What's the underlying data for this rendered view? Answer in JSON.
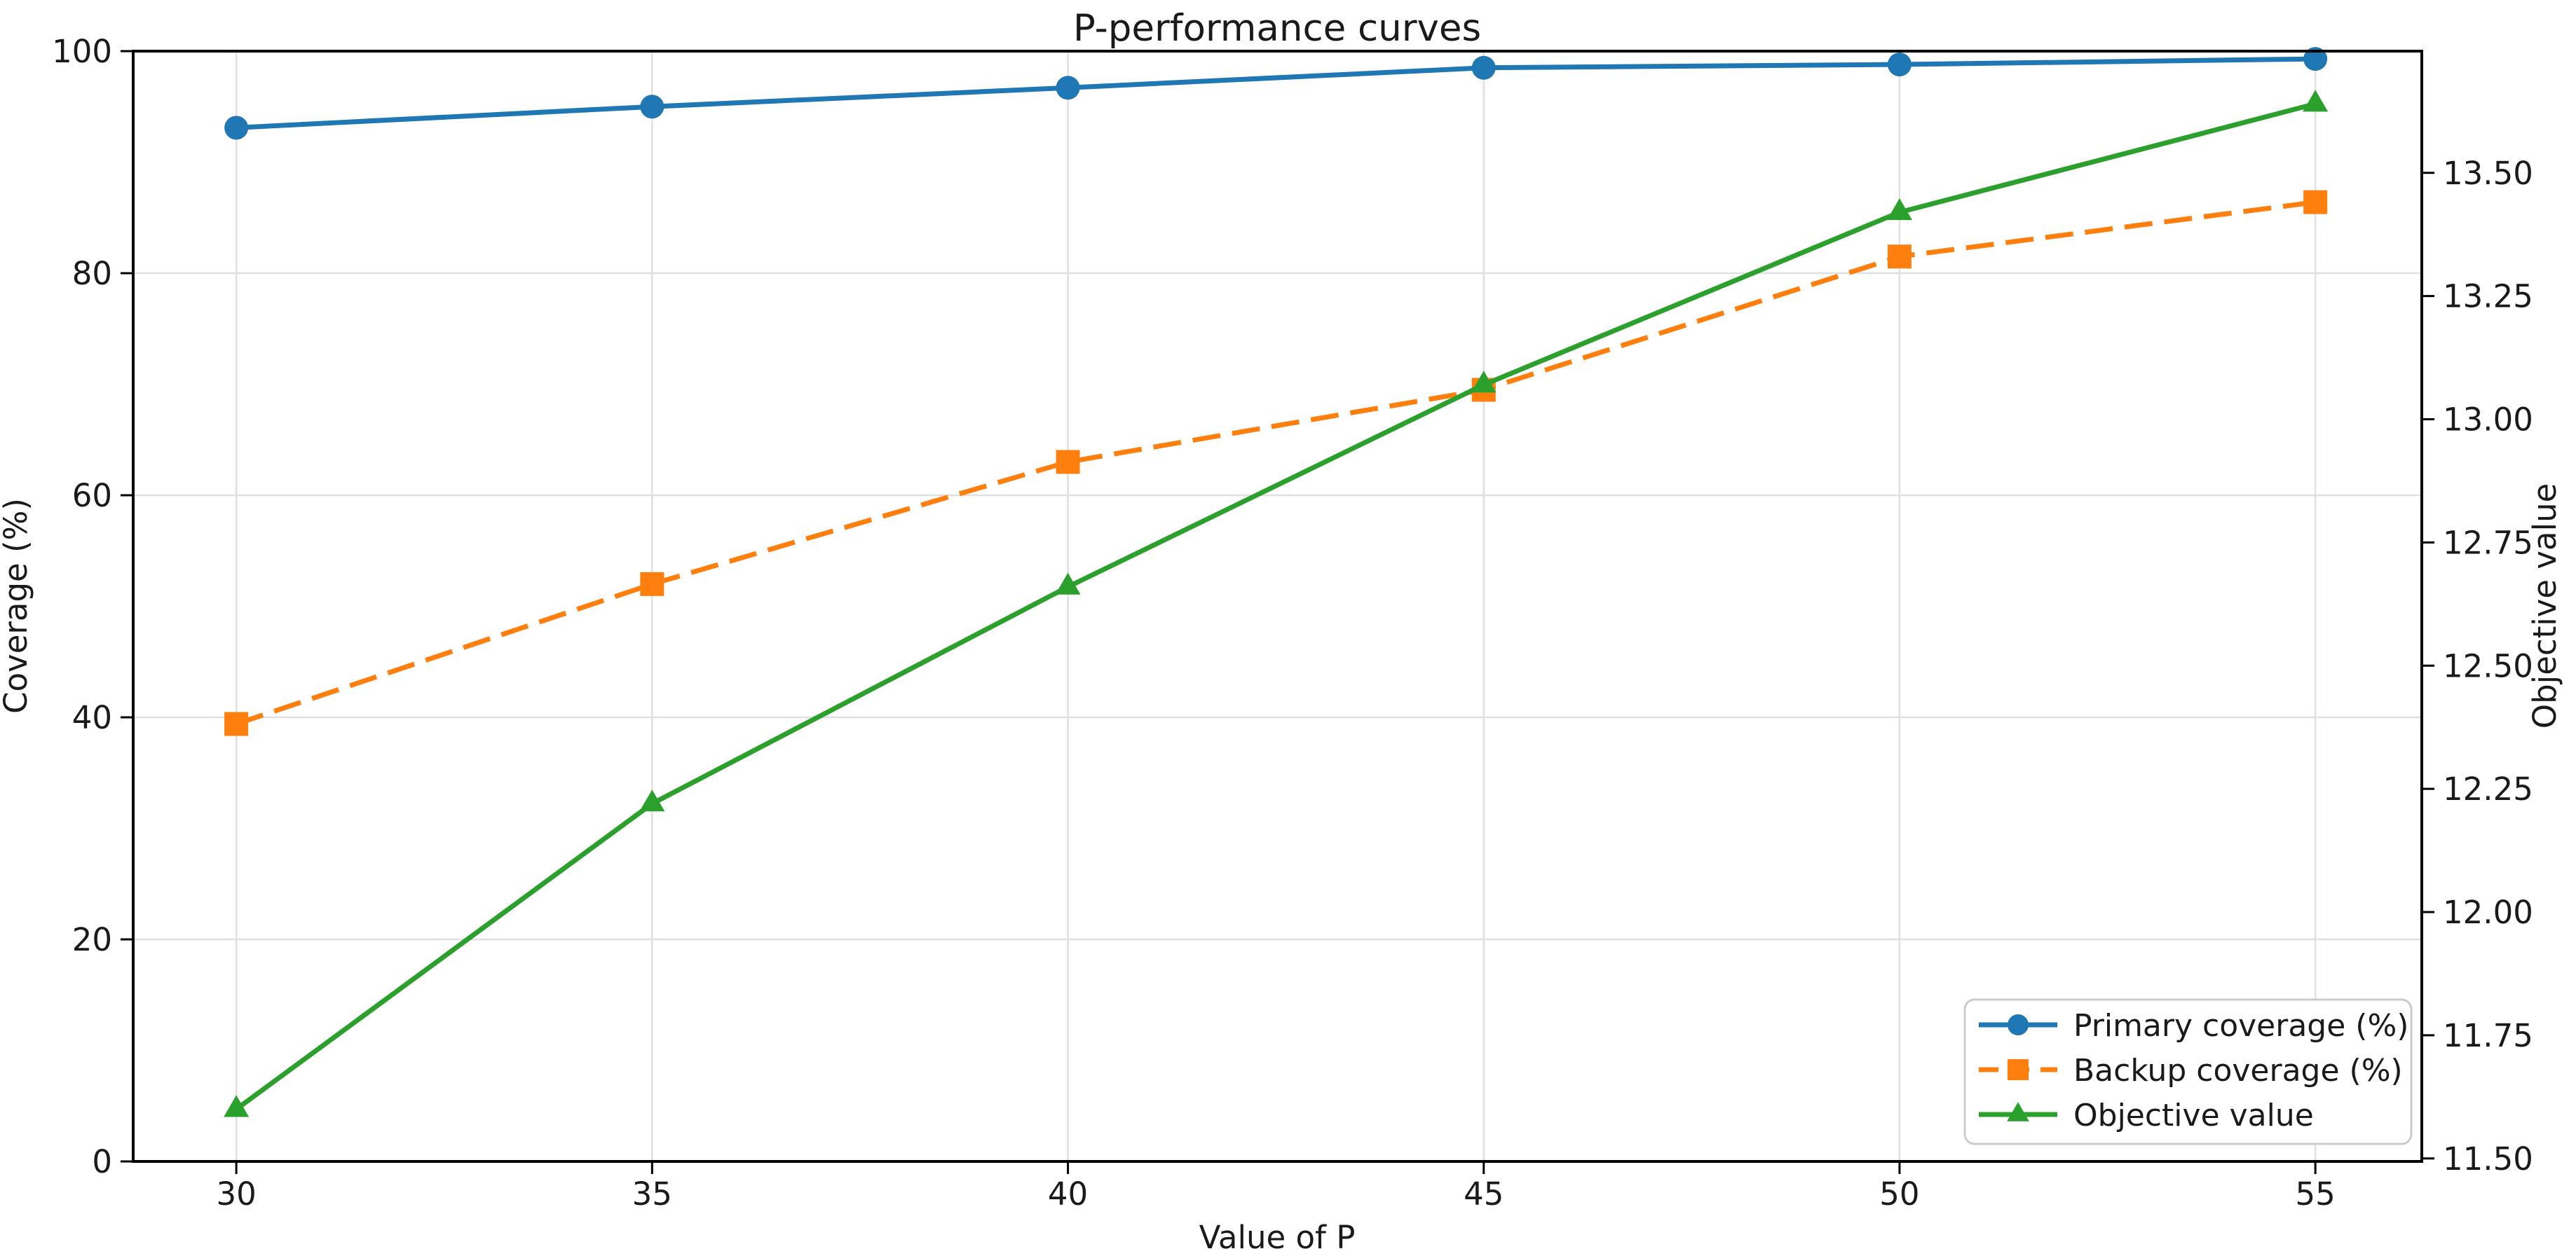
{
  "chart_data": {
    "type": "line",
    "title": "P-performance curves",
    "xlabel": "Value of P",
    "ylabel_left": "Coverage (%)",
    "ylabel_right": "Objective value",
    "x": [
      30,
      35,
      40,
      45,
      50,
      55
    ],
    "x_tick_labels": [
      "30",
      "35",
      "40",
      "45",
      "50",
      "55"
    ],
    "xlim": [
      28.76,
      56.28
    ],
    "left_axis": {
      "label": "Coverage (%)",
      "ticks": [
        0,
        20,
        40,
        60,
        80,
        100
      ],
      "range": [
        0,
        100
      ]
    },
    "right_axis": {
      "label": "Objective value",
      "ticks": [
        11.5,
        11.75,
        12.0,
        12.25,
        12.5,
        12.75,
        13.0,
        13.25,
        13.5
      ],
      "range": [
        11.494,
        13.747
      ],
      "decimals": 2
    },
    "series": [
      {
        "name": "Primary coverage (%)",
        "axis": "left",
        "color": "#1f77b4",
        "marker": "circle",
        "line_style": "solid",
        "values": [
          93.1,
          95.0,
          96.7,
          98.5,
          98.8,
          99.3
        ]
      },
      {
        "name": "Backup coverage (%)",
        "axis": "left",
        "color": "#ff7f0e",
        "marker": "square",
        "line_style": "dashed",
        "values": [
          39.4,
          52.0,
          63.0,
          69.5,
          81.5,
          86.4
        ]
      },
      {
        "name": "Objective value",
        "axis": "right",
        "color": "#2ca02c",
        "marker": "triangle",
        "line_style": "solid",
        "values": [
          11.6,
          12.22,
          12.66,
          13.07,
          13.42,
          13.64
        ]
      }
    ],
    "grid": true,
    "legend_position": "lower right",
    "colors": {
      "background": "#ffffff",
      "grid": "#e0e0e0",
      "spine": "#000000",
      "text": "#1a1a1a",
      "legend_border": "#cccccc",
      "legend_background": "#ffffff"
    }
  }
}
